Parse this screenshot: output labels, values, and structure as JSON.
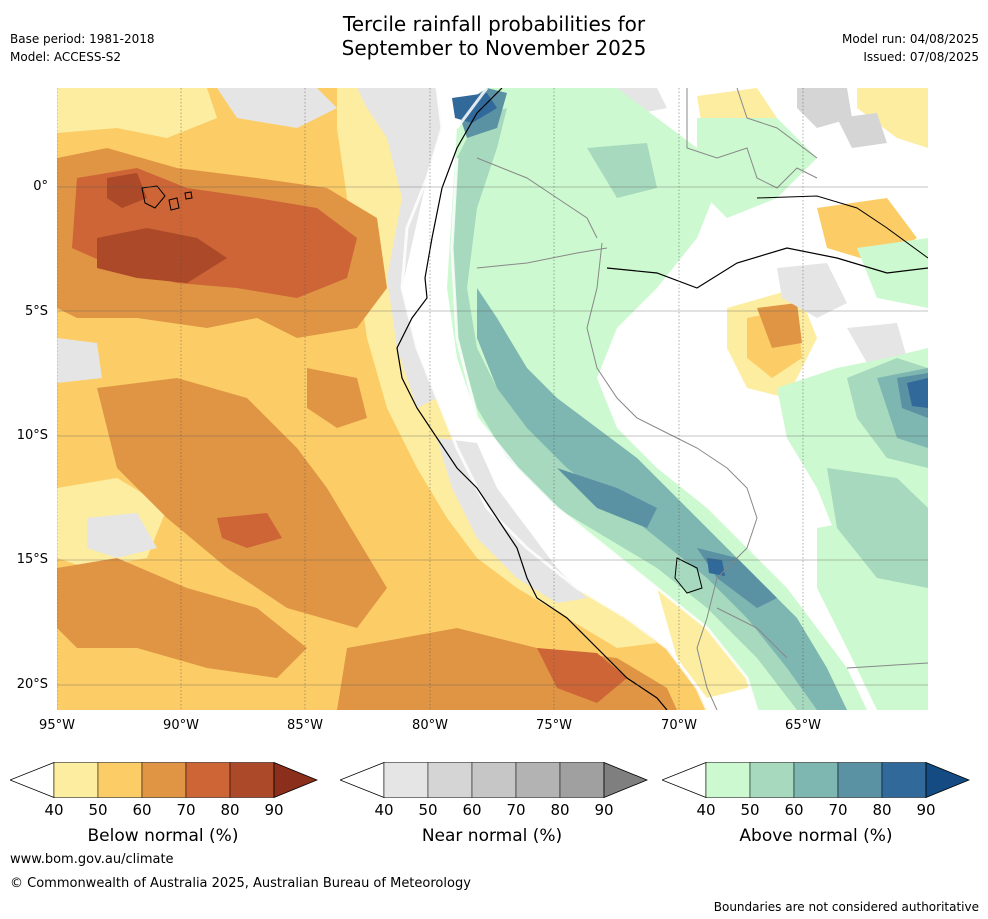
{
  "header": {
    "title_line1": "Tercile rainfall probabilities for",
    "title_line2": "September to November 2025",
    "base_period": "Base period: 1981-2018",
    "model": "Model: ACCESS-S2",
    "model_run": "Model run: 04/08/2025",
    "issued": "Issued: 07/08/2025"
  },
  "map": {
    "lat_labels": [
      "0°",
      "5°S",
      "10°S",
      "15°S",
      "20°S"
    ],
    "lon_labels": [
      "95°W",
      "90°W",
      "85°W",
      "80°W",
      "75°W",
      "70°W",
      "65°W"
    ],
    "extent": {
      "lon_min": -95,
      "lon_max": -60,
      "lat_max": 4,
      "lat_min": -21
    }
  },
  "colorbars": [
    {
      "title": "Below normal (%)",
      "ticks": [
        "40",
        "50",
        "60",
        "70",
        "80",
        "90"
      ],
      "colors": [
        "#fdeda0",
        "#fccd66",
        "#e09545",
        "#cd6536",
        "#ab4928",
        "#8b2e1c"
      ]
    },
    {
      "title": "Near normal (%)",
      "ticks": [
        "40",
        "50",
        "60",
        "70",
        "80",
        "90"
      ],
      "colors": [
        "#e5e5e5",
        "#d5d5d5",
        "#c6c6c6",
        "#b3b3b3",
        "#a0a0a0",
        "#7f7f7f"
      ]
    },
    {
      "title": "Above normal (%)",
      "ticks": [
        "40",
        "50",
        "60",
        "70",
        "80",
        "90"
      ],
      "colors": [
        "#ccf9cf",
        "#a6d9bd",
        "#7eb6b1",
        "#5a91a3",
        "#30699a",
        "#134b82"
      ]
    }
  ],
  "footer": {
    "url": "www.bom.gov.au/climate",
    "copyright": "© Commonwealth of Australia 2025, Australian Bureau of Meteorology",
    "disclaimer": "Boundaries are not considered authoritative"
  }
}
